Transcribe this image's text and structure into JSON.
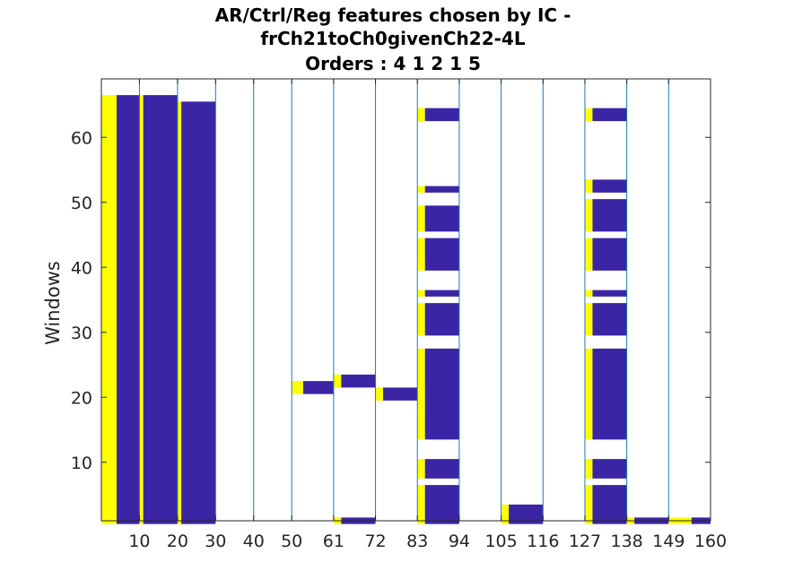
{
  "chart_data": {
    "type": "heatmap",
    "title_lines": [
      "AR/Ctrl/Reg features chosen by IC -",
      "frCh21toCh0givenCh22-4L",
      "Orders : 4 1 2 1 5"
    ],
    "xlabel": "",
    "ylabel": "Windows",
    "xlim": [
      0,
      160
    ],
    "ylim": [
      1,
      69
    ],
    "x_ticks": [
      10,
      20,
      30,
      40,
      50,
      61,
      72,
      83,
      94,
      105,
      116,
      127,
      138,
      149,
      160
    ],
    "y_ticks": [
      10,
      20,
      30,
      40,
      50,
      60
    ],
    "grid": false,
    "colors": {
      "selected_order": "#ffff00",
      "selected_feature": "#3c25a5",
      "separator": "#1f77b4"
    },
    "segments": [
      {
        "yellow": [
          0,
          4
        ],
        "blue": [
          4,
          10
        ],
        "windows": [
          [
            1,
            66
          ]
        ]
      },
      {
        "yellow": [
          10,
          11
        ],
        "blue": [
          11,
          20
        ],
        "windows": [
          [
            1,
            66
          ]
        ]
      },
      {
        "yellow": [
          20,
          21
        ],
        "blue": [
          21,
          30
        ],
        "windows": [
          [
            1,
            65
          ]
        ]
      },
      {
        "yellow": [
          50,
          53
        ],
        "blue": [
          53,
          61
        ],
        "windows": [
          [
            21,
            22
          ]
        ]
      },
      {
        "yellow": [
          61,
          63
        ],
        "blue": [
          63,
          72
        ],
        "windows": [
          [
            1,
            1
          ],
          [
            22,
            23
          ]
        ]
      },
      {
        "yellow": [
          72,
          74
        ],
        "blue": [
          74,
          83
        ],
        "windows": [
          [
            20,
            21
          ]
        ]
      },
      {
        "yellow": [
          83,
          85
        ],
        "blue": [
          85,
          94
        ],
        "windows": [
          [
            1,
            6
          ],
          [
            8,
            10
          ],
          [
            14,
            27
          ],
          [
            30,
            34
          ],
          [
            36,
            36
          ],
          [
            40,
            44
          ],
          [
            46,
            49
          ],
          [
            52,
            52
          ],
          [
            63,
            64
          ]
        ]
      },
      {
        "yellow": [
          105,
          107
        ],
        "blue": [
          107,
          116
        ],
        "windows": [
          [
            1,
            3
          ]
        ]
      },
      {
        "yellow": [
          127,
          129
        ],
        "blue": [
          129,
          138
        ],
        "windows": [
          [
            1,
            6
          ],
          [
            8,
            10
          ],
          [
            14,
            27
          ],
          [
            30,
            34
          ],
          [
            36,
            36
          ],
          [
            40,
            44
          ],
          [
            46,
            50
          ],
          [
            52,
            53
          ],
          [
            63,
            64
          ]
        ]
      },
      {
        "yellow": [
          138,
          140
        ],
        "blue": [
          140,
          149
        ],
        "windows": [
          [
            1,
            1
          ]
        ]
      },
      {
        "yellow": [
          149,
          155
        ],
        "blue": [
          155,
          160
        ],
        "windows": [
          [
            1,
            1
          ]
        ]
      }
    ]
  }
}
